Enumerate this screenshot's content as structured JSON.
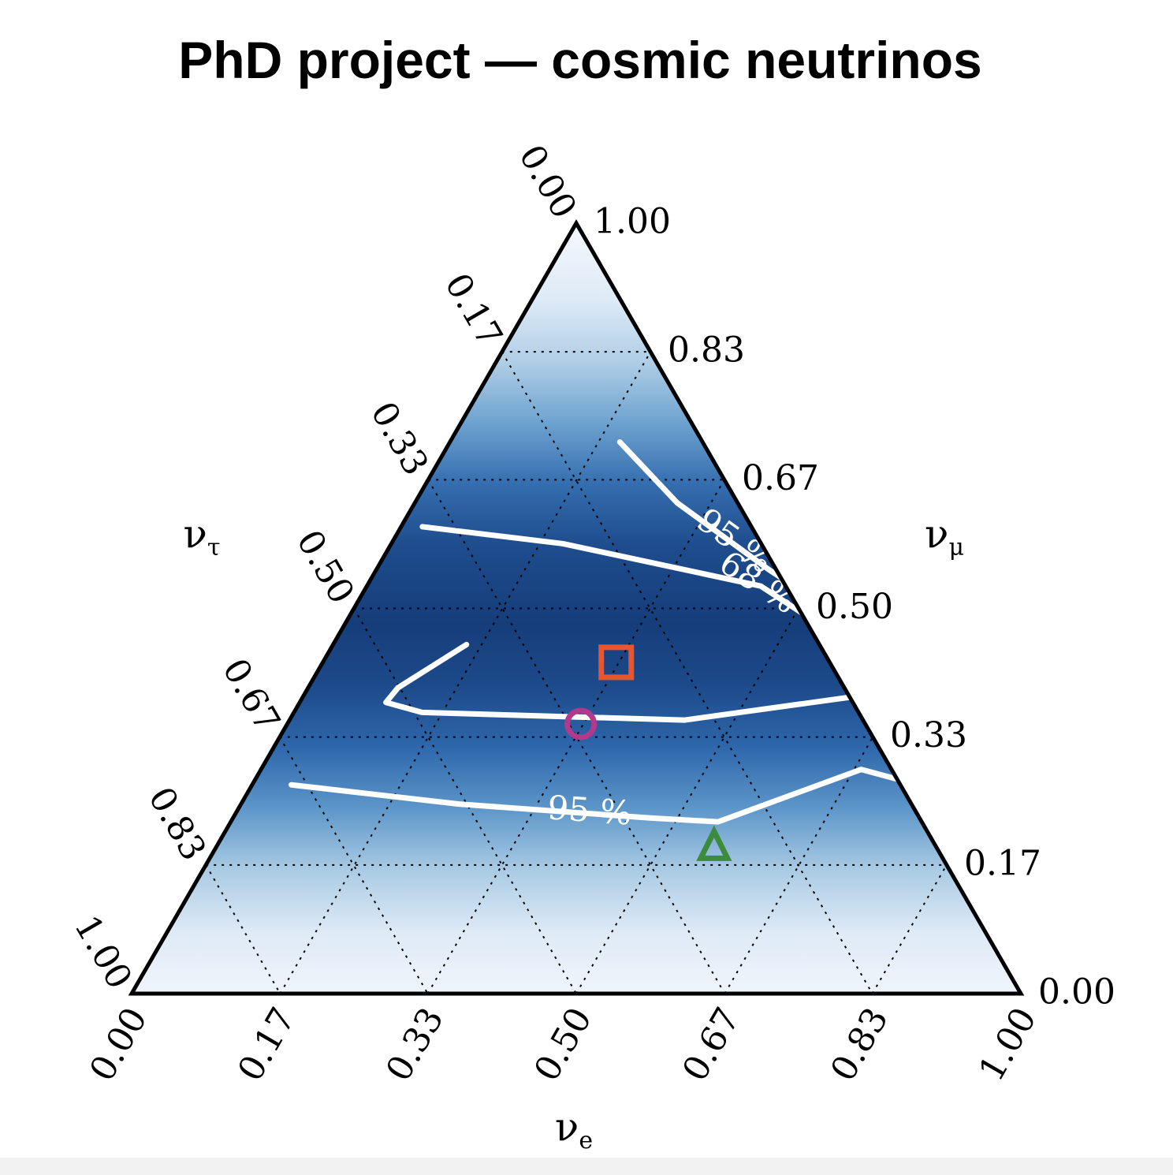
{
  "title": "PhD project — cosmic neutrinos",
  "chart_data": {
    "type": "ternary-contour",
    "axes": {
      "bottom": {
        "label": "ν",
        "subscript": "e",
        "ticks": [
          "0.00",
          "0.17",
          "0.33",
          "0.50",
          "0.67",
          "0.83",
          "1.00"
        ]
      },
      "right": {
        "label": "ν",
        "subscript": "μ",
        "ticks": [
          "0.00",
          "0.17",
          "0.33",
          "0.50",
          "0.67",
          "0.83",
          "1.00"
        ]
      },
      "left": {
        "label": "ν",
        "subscript": "τ",
        "ticks": [
          "0.00",
          "0.17",
          "0.33",
          "0.50",
          "0.67",
          "0.83",
          "1.00"
        ]
      }
    },
    "grid": {
      "values": [
        0.167,
        0.333,
        0.5,
        0.667,
        0.833
      ],
      "style": "dotted"
    },
    "density": {
      "colormap": "Blues",
      "colors": [
        "#f4f8fd",
        "#c8dcef",
        "#8cbad9",
        "#4d8ac4",
        "#2b63a8",
        "#163d7a"
      ],
      "by_mu_fraction": [
        {
          "mu": 0.0,
          "level": 0.02
        },
        {
          "mu": 0.08,
          "level": 0.1
        },
        {
          "mu": 0.16,
          "level": 0.3
        },
        {
          "mu": 0.24,
          "level": 0.55
        },
        {
          "mu": 0.32,
          "level": 0.78
        },
        {
          "mu": 0.4,
          "level": 0.93
        },
        {
          "mu": 0.48,
          "level": 1.0
        },
        {
          "mu": 0.58,
          "level": 0.92
        },
        {
          "mu": 0.66,
          "level": 0.75
        },
        {
          "mu": 0.74,
          "level": 0.5
        },
        {
          "mu": 0.82,
          "level": 0.28
        },
        {
          "mu": 0.9,
          "level": 0.1
        },
        {
          "mu": 1.0,
          "level": 0.0
        }
      ]
    },
    "contours": [
      {
        "label": "68 %",
        "color": "#ffffff",
        "points": [
          [
            0.024,
            0.606
          ],
          [
            0.193,
            0.584
          ],
          [
            0.443,
            0.529
          ],
          [
            0.655,
            0.413
          ],
          [
            0.719,
            0.363
          ],
          [
            0.646,
            0.39
          ],
          [
            0.444,
            0.355
          ],
          [
            0.144,
            0.365
          ],
          [
            0.097,
            0.378
          ],
          [
            0.101,
            0.397
          ],
          [
            0.15,
            0.453
          ]
        ]
      },
      {
        "label": "95 %",
        "color": "#ffffff",
        "points": [
          [
            0.191,
            0.716
          ],
          [
            0.295,
            0.637
          ],
          [
            0.442,
            0.55
          ],
          [
            0.619,
            0.453
          ],
          [
            0.696,
            0.368
          ],
          [
            0.624,
            0.387
          ]
        ]
      },
      {
        "label": "95 %",
        "color": "#ffffff",
        "points": [
          [
            0.044,
            0.271
          ],
          [
            0.245,
            0.246
          ],
          [
            0.469,
            0.228
          ],
          [
            0.548,
            0.223
          ],
          [
            0.675,
            0.291
          ],
          [
            0.812,
            0.254
          ],
          [
            0.852,
            0.241
          ]
        ]
      }
    ],
    "markers": [
      {
        "shape": "square",
        "color": "#e8552e",
        "e": 0.33,
        "mu": 0.43
      },
      {
        "shape": "circle",
        "color": "#b03a8c",
        "e": 0.33,
        "mu": 0.35
      },
      {
        "shape": "triangle",
        "color": "#3d8b3d",
        "e": 0.56,
        "mu": 0.19
      }
    ]
  }
}
